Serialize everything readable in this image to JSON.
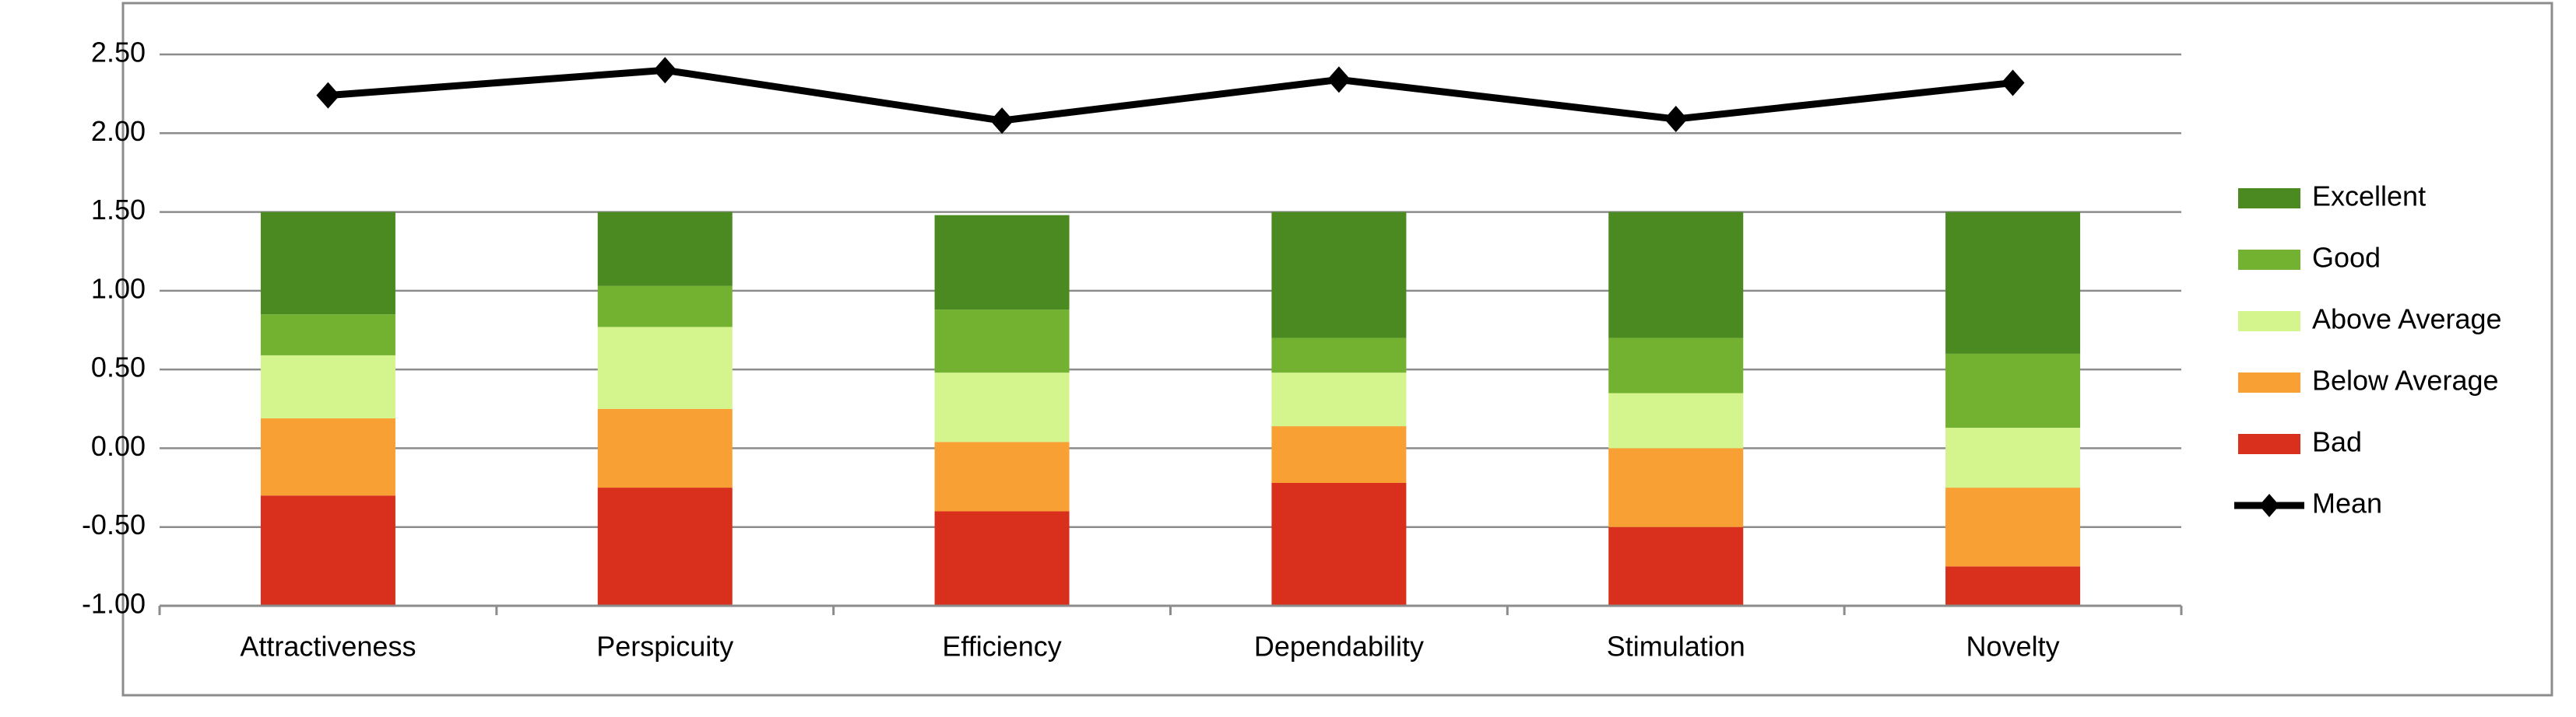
{
  "chart_data": {
    "type": "bar",
    "stacked": true,
    "categories": [
      "Attractiveness",
      "Perspicuity",
      "Efficiency",
      "Dependability",
      "Stimulation",
      "Novelty"
    ],
    "series": [
      {
        "name": "Bad",
        "color": "#d9301e",
        "values": [
          0.7,
          0.75,
          0.6,
          0.78,
          0.5,
          0.25
        ]
      },
      {
        "name": "Below Average",
        "color": "#f9a034",
        "values": [
          0.49,
          0.5,
          0.44,
          0.36,
          0.5,
          0.5
        ]
      },
      {
        "name": "Above Average",
        "color": "#d4f58e",
        "values": [
          0.4,
          0.52,
          0.44,
          0.34,
          0.35,
          0.38
        ]
      },
      {
        "name": "Good",
        "color": "#72b230",
        "values": [
          0.26,
          0.26,
          0.4,
          0.22,
          0.35,
          0.47
        ]
      },
      {
        "name": "Excellent",
        "color": "#4a8a20",
        "values": [
          0.65,
          0.47,
          0.6,
          0.8,
          0.8,
          0.9
        ]
      },
      {
        "name": "Mean",
        "type": "line",
        "color": "#000000",
        "values": [
          2.24,
          2.4,
          2.08,
          2.34,
          2.09,
          2.32
        ]
      }
    ],
    "ylim": [
      -1.0,
      2.5
    ],
    "yticks": [
      {
        "value": -1.0,
        "label": "-1.00"
      },
      {
        "value": -0.5,
        "label": "-0.50"
      },
      {
        "value": 0,
        "label": "0.00"
      },
      {
        "value": 0.5,
        "label": "0.50"
      },
      {
        "value": 1.0,
        "label": "1.00"
      },
      {
        "value": 1.5,
        "label": "1.50"
      },
      {
        "value": 2.0,
        "label": "2.00"
      },
      {
        "value": 2.5,
        "label": "2.50"
      }
    ],
    "grid": true,
    "legend": "right"
  }
}
